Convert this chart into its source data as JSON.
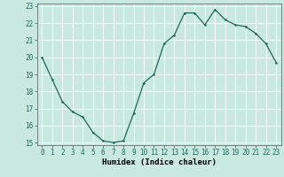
{
  "x": [
    0,
    1,
    2,
    3,
    4,
    5,
    6,
    7,
    8,
    9,
    10,
    11,
    12,
    13,
    14,
    15,
    16,
    17,
    18,
    19,
    20,
    21,
    22,
    23
  ],
  "y": [
    20.0,
    18.7,
    17.4,
    16.8,
    16.5,
    15.6,
    15.1,
    15.0,
    15.1,
    16.7,
    18.5,
    19.0,
    20.8,
    21.3,
    22.6,
    22.6,
    21.9,
    22.8,
    22.2,
    21.9,
    21.8,
    21.4,
    20.8,
    19.7
  ],
  "xlabel": "Humidex (Indice chaleur)",
  "ylim": [
    15,
    23
  ],
  "xlim": [
    -0.5,
    23.5
  ],
  "yticks": [
    15,
    16,
    17,
    18,
    19,
    20,
    21,
    22,
    23
  ],
  "xticks": [
    0,
    1,
    2,
    3,
    4,
    5,
    6,
    7,
    8,
    9,
    10,
    11,
    12,
    13,
    14,
    15,
    16,
    17,
    18,
    19,
    20,
    21,
    22,
    23
  ],
  "line_color": "#1a6b5a",
  "marker_color": "#1a6b5a",
  "bg_color": "#c8e8e0",
  "grid_color": "#ffffff",
  "tick_label_fontsize": 5.5,
  "xlabel_fontsize": 6.5,
  "xlabel_bold": true
}
